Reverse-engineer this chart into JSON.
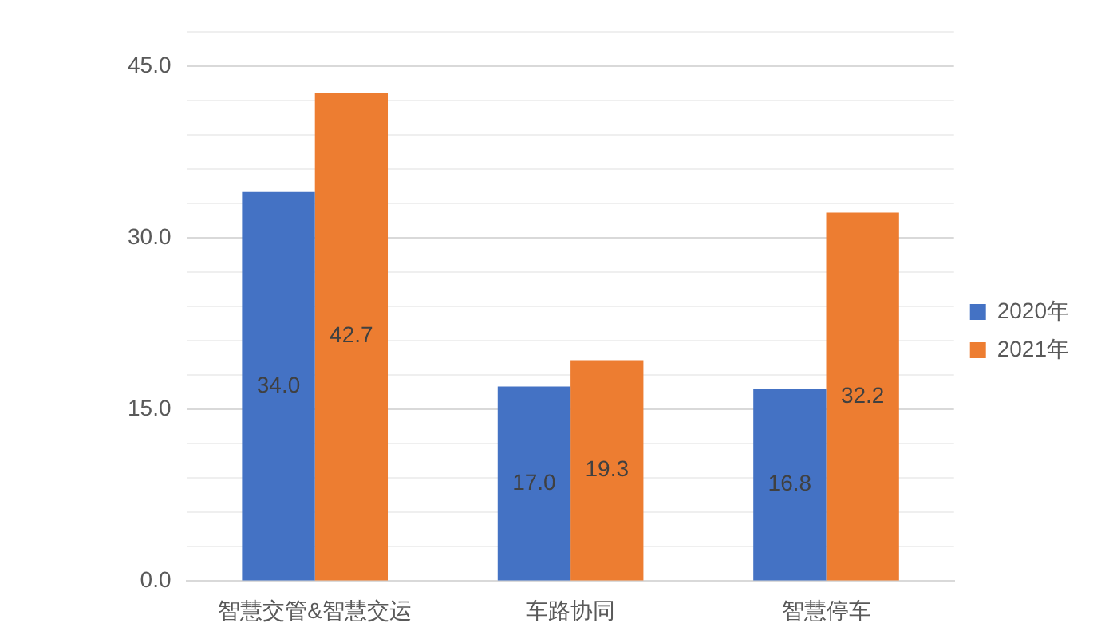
{
  "chart_data": {
    "type": "bar",
    "categories": [
      "智慧交管&智慧交运",
      "车路协同",
      "智慧停车"
    ],
    "series": [
      {
        "name": "2020年",
        "color": "#4472c4",
        "values": [
          34.0,
          17.0,
          16.8
        ],
        "value_labels": [
          "34.0",
          "17.0",
          "16.8"
        ]
      },
      {
        "name": "2021年",
        "color": "#ed7d31",
        "values": [
          42.7,
          19.3,
          32.2
        ],
        "value_labels": [
          "42.7",
          "19.3",
          "32.2"
        ]
      }
    ],
    "ylim": [
      0,
      48
    ],
    "yticks": [
      {
        "value": 0,
        "label": "0.0"
      },
      {
        "value": 3,
        "label": null
      },
      {
        "value": 6,
        "label": null
      },
      {
        "value": 9,
        "label": null
      },
      {
        "value": 12,
        "label": null
      },
      {
        "value": 15,
        "label": "15.0"
      },
      {
        "value": 18,
        "label": null
      },
      {
        "value": 21,
        "label": null
      },
      {
        "value": 24,
        "label": null
      },
      {
        "value": 27,
        "label": null
      },
      {
        "value": 30,
        "label": "30.0"
      },
      {
        "value": 33,
        "label": null
      },
      {
        "value": 36,
        "label": null
      },
      {
        "value": 39,
        "label": null
      },
      {
        "value": 42,
        "label": null
      },
      {
        "value": 45,
        "label": "45.0"
      },
      {
        "value": 48,
        "label": null
      }
    ],
    "grid": "y",
    "legend": "right"
  }
}
